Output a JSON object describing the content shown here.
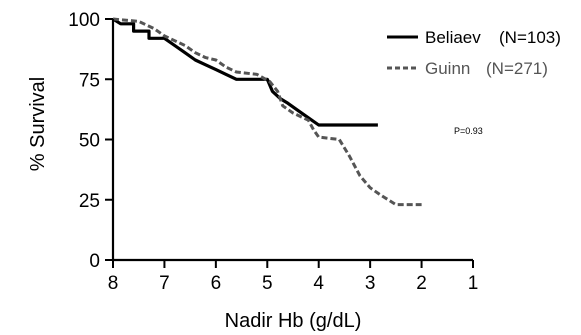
{
  "chart_data": {
    "type": "line",
    "xlabel": "Nadir Hb (g/dL)",
    "ylabel": "% Survival",
    "xlim": [
      8,
      1
    ],
    "ylim": [
      0,
      100
    ],
    "x_reversed": true,
    "x_ticks": [
      8,
      7,
      6,
      5,
      4,
      3,
      2,
      1
    ],
    "y_ticks": [
      0,
      25,
      50,
      75,
      100
    ],
    "x_tick_labels": [
      "8",
      "7",
      "6",
      "5",
      "4",
      "3",
      "2",
      "1"
    ],
    "y_tick_labels": [
      "0",
      "25",
      "50",
      "75",
      "100"
    ],
    "legend_position": "top-right",
    "annotation": "P=0.93",
    "series": [
      {
        "name": "Beliaev",
        "n_label": "(N=103)",
        "color": "#000000",
        "style": "solid",
        "points": [
          [
            8,
            100
          ],
          [
            7.85,
            98
          ],
          [
            7.6,
            98
          ],
          [
            7.6,
            95
          ],
          [
            7.3,
            95
          ],
          [
            7.3,
            92
          ],
          [
            7.0,
            92
          ],
          [
            6.8,
            89
          ],
          [
            6.6,
            86
          ],
          [
            6.4,
            83
          ],
          [
            6.2,
            81
          ],
          [
            6.0,
            79
          ],
          [
            5.8,
            77
          ],
          [
            5.6,
            75
          ],
          [
            5.0,
            75
          ],
          [
            4.9,
            70
          ],
          [
            4.75,
            67
          ],
          [
            4.6,
            65
          ],
          [
            4.4,
            62
          ],
          [
            4.2,
            59
          ],
          [
            4.0,
            56
          ],
          [
            2.85,
            56
          ]
        ]
      },
      {
        "name": "Guinn",
        "n_label": "(N=271)",
        "color": "#555555",
        "style": "dashed",
        "points": [
          [
            8,
            100
          ],
          [
            7.5,
            99
          ],
          [
            7.2,
            96
          ],
          [
            7.0,
            93
          ],
          [
            6.8,
            91
          ],
          [
            6.6,
            89
          ],
          [
            6.4,
            86
          ],
          [
            6.2,
            84
          ],
          [
            6.0,
            83
          ],
          [
            5.8,
            80
          ],
          [
            5.6,
            78
          ],
          [
            5.2,
            77
          ],
          [
            4.95,
            74
          ],
          [
            4.8,
            70
          ],
          [
            4.7,
            64
          ],
          [
            4.5,
            61
          ],
          [
            4.2,
            58
          ],
          [
            4.1,
            54
          ],
          [
            4.0,
            51
          ],
          [
            3.6,
            50
          ],
          [
            3.4,
            43
          ],
          [
            3.2,
            35
          ],
          [
            3.0,
            30
          ],
          [
            2.8,
            27
          ],
          [
            2.5,
            23
          ],
          [
            2.0,
            23
          ]
        ]
      }
    ]
  }
}
